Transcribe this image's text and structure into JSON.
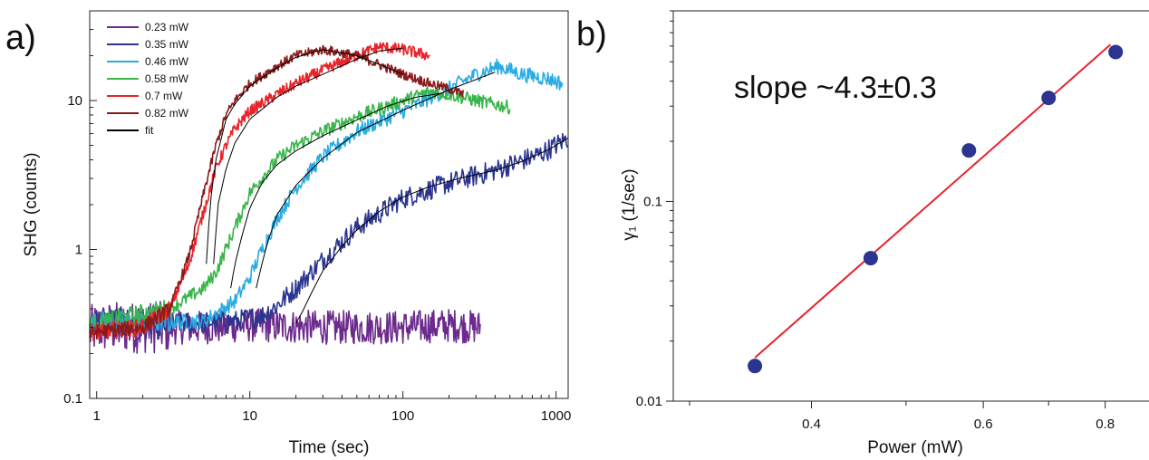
{
  "panels": {
    "a": {
      "letter": "a)"
    },
    "b": {
      "letter": "b)"
    }
  },
  "chart_data": [
    {
      "type": "line",
      "panel": "a",
      "title": "",
      "xlabel": "Time (sec)",
      "ylabel": "SHG (counts)",
      "xscale": "log",
      "yscale": "log",
      "xlim": [
        0.9,
        1200
      ],
      "ylim": [
        0.1,
        40
      ],
      "xticks": [
        1,
        10,
        100,
        1000
      ],
      "xtick_labels": [
        "1",
        "10",
        "100",
        "1000"
      ],
      "yticks": [
        0.1,
        1,
        10
      ],
      "ytick_labels": [
        "0.1",
        "1",
        "10"
      ],
      "legend_position": "top-left",
      "series": [
        {
          "name": "0.23 mW",
          "color": "#6b2a8c",
          "noise": 0.35,
          "x": [
            0.9,
            1,
            2,
            5,
            10,
            30,
            100,
            200,
            320
          ],
          "y": [
            0.28,
            0.3,
            0.3,
            0.3,
            0.31,
            0.3,
            0.3,
            0.31,
            0.3
          ]
        },
        {
          "name": "0.35 mW",
          "color": "#2b3590",
          "noise": 0.22,
          "x": [
            0.9,
            1,
            3,
            8,
            12,
            15,
            20,
            30,
            50,
            100,
            200,
            400,
            800,
            1200
          ],
          "y": [
            0.3,
            0.32,
            0.32,
            0.33,
            0.36,
            0.42,
            0.55,
            0.85,
            1.4,
            2.2,
            2.8,
            3.4,
            4.4,
            5.6
          ]
        },
        {
          "name": "0.46 mW",
          "color": "#29abe2",
          "noise": 0.16,
          "x": [
            0.9,
            1,
            5,
            8,
            10,
            12,
            15,
            20,
            30,
            50,
            100,
            200,
            300,
            420,
            600,
            900,
            1100
          ],
          "y": [
            0.3,
            0.32,
            0.33,
            0.45,
            0.65,
            1.0,
            1.6,
            2.6,
            4.2,
            6.2,
            8.5,
            12,
            15,
            17,
            15,
            14,
            13
          ]
        },
        {
          "name": "0.58 mW",
          "color": "#39b54a",
          "noise": 0.14,
          "x": [
            0.9,
            1,
            3,
            5,
            6,
            8,
            10,
            15,
            20,
            30,
            50,
            100,
            150,
            200,
            300,
            500
          ],
          "y": [
            0.3,
            0.32,
            0.4,
            0.55,
            0.7,
            1.4,
            2.4,
            4.0,
            5.0,
            6.2,
            7.8,
            10,
            11.5,
            11,
            10,
            9
          ]
        },
        {
          "name": "0.7 mW",
          "color": "#e8232a",
          "noise": 0.12,
          "x": [
            0.9,
            1,
            2,
            3,
            4,
            5,
            6,
            7,
            8,
            10,
            15,
            20,
            30,
            50,
            70,
            100,
            150
          ],
          "y": [
            0.28,
            0.28,
            0.3,
            0.4,
            0.8,
            1.8,
            3.5,
            5.0,
            6.5,
            8.5,
            11,
            13,
            16,
            20,
            23,
            22,
            20
          ]
        },
        {
          "name": "0.82 mW",
          "color": "#8b1a1a",
          "noise": 0.1,
          "x": [
            0.9,
            1,
            2,
            3,
            4,
            5,
            6,
            7,
            8,
            10,
            15,
            20,
            30,
            50,
            100,
            150,
            200,
            250
          ],
          "y": [
            0.27,
            0.28,
            0.3,
            0.4,
            0.9,
            2.4,
            5.0,
            8.0,
            10,
            13,
            17,
            20,
            22,
            20,
            15,
            13,
            12,
            11
          ]
        },
        {
          "name": "fit",
          "color": "#000000",
          "noise": 0,
          "role": "fit",
          "x": [],
          "y": []
        }
      ],
      "fit_curves": [
        {
          "x": [
            5.2,
            5.5,
            6,
            7,
            8,
            10,
            15,
            20,
            30,
            50,
            70,
            100
          ],
          "y": [
            0.8,
            2.0,
            4.0,
            7.5,
            9.5,
            12.5,
            16.5,
            19.5,
            22,
            20,
            17.5,
            15
          ]
        },
        {
          "x": [
            5.8,
            6.2,
            7,
            8,
            10,
            15,
            20,
            30,
            50,
            70,
            100
          ],
          "y": [
            0.8,
            2.0,
            3.5,
            5.2,
            7.5,
            10.5,
            12.5,
            15,
            19,
            21.5,
            22.5
          ]
        },
        {
          "x": [
            7.5,
            8,
            9,
            10,
            12,
            15,
            20,
            30,
            50,
            80,
            120,
            180
          ],
          "y": [
            0.55,
            0.8,
            1.3,
            1.9,
            2.8,
            3.7,
            4.6,
            5.8,
            7.4,
            9.2,
            10.5,
            11.2
          ]
        },
        {
          "x": [
            11,
            12,
            13,
            15,
            20,
            30,
            50,
            100,
            200,
            400
          ],
          "y": [
            0.55,
            0.8,
            1.1,
            1.7,
            2.7,
            4.1,
            6.1,
            8.6,
            11.8,
            15.5
          ]
        },
        {
          "x": [
            20,
            22,
            25,
            30,
            40,
            50,
            70,
            100,
            150,
            250,
            400,
            600,
            900,
            1200
          ],
          "y": [
            0.32,
            0.38,
            0.5,
            0.72,
            1.05,
            1.35,
            1.8,
            2.25,
            2.65,
            3.05,
            3.4,
            3.9,
            4.7,
            5.6
          ]
        }
      ]
    },
    {
      "type": "scatter",
      "panel": "b",
      "title": "",
      "xlabel": "Power (mW)",
      "ylabel": "γ₁ (1/sec)",
      "xscale": "log",
      "yscale": "log",
      "xlim": [
        0.3,
        0.85
      ],
      "ylim": [
        0.01,
        0.9
      ],
      "xticks": [
        0.4,
        0.6,
        0.8
      ],
      "xtick_labels": [
        "0.4",
        "0.6",
        "0.8"
      ],
      "yticks": [
        0.01,
        0.1
      ],
      "ytick_labels": [
        "0.01",
        "0.1"
      ],
      "point_color": "#2b3590",
      "line_color": "#e8232a",
      "annotation": "slope ~4.3±0.3",
      "points": {
        "x": [
          0.35,
          0.46,
          0.58,
          0.7,
          0.82
        ],
        "y": [
          0.015,
          0.052,
          0.18,
          0.33,
          0.56
        ]
      },
      "fit_line": {
        "x": [
          0.35,
          0.81
        ],
        "y": [
          0.0165,
          0.61
        ]
      }
    }
  ]
}
